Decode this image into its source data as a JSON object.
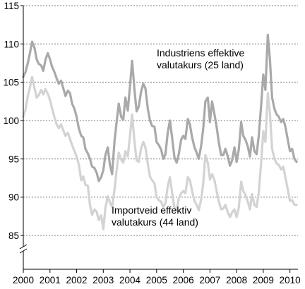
{
  "chart_data": {
    "type": "line",
    "title": "",
    "xlabel": "",
    "ylabel": "",
    "xlim": [
      2000.0,
      2010.3
    ],
    "ylim": [
      84,
      115
    ],
    "axis_break": true,
    "grid": "horizontal dashed",
    "y_ticks": [
      "85",
      "90",
      "95",
      "100",
      "105",
      "110",
      "115"
    ],
    "x_ticks": [
      "2000",
      "2001",
      "2002",
      "2003",
      "2004",
      "2005",
      "2006",
      "2007",
      "2008",
      "2009",
      "2010"
    ],
    "annotations": [
      {
        "lines": [
          "Industriens effektive",
          "valutakurs (25 land)"
        ]
      },
      {
        "lines": [
          "Importveid effektiv",
          "valutakurs (44 land)"
        ]
      }
    ],
    "series": [
      {
        "color": "#a9a9a9",
        "x": [
          2000.0,
          2000.08,
          2000.17,
          2000.25,
          2000.33,
          2000.42,
          2000.5,
          2000.58,
          2000.67,
          2000.75,
          2000.83,
          2000.92,
          2001.0,
          2001.08,
          2001.17,
          2001.25,
          2001.33,
          2001.42,
          2001.5,
          2001.58,
          2001.67,
          2001.75,
          2001.83,
          2001.92,
          2002.0,
          2002.08,
          2002.17,
          2002.25,
          2002.33,
          2002.42,
          2002.5,
          2002.58,
          2002.67,
          2002.75,
          2002.83,
          2002.92,
          2003.0,
          2003.08,
          2003.17,
          2003.25,
          2003.33,
          2003.42,
          2003.5,
          2003.58,
          2003.67,
          2003.75,
          2003.83,
          2003.92,
          2004.0,
          2004.08,
          2004.17,
          2004.25,
          2004.33,
          2004.42,
          2004.5,
          2004.58,
          2004.67,
          2004.75,
          2004.83,
          2004.92,
          2005.0,
          2005.08,
          2005.17,
          2005.25,
          2005.33,
          2005.42,
          2005.5,
          2005.58,
          2005.67,
          2005.75,
          2005.83,
          2005.92,
          2006.0,
          2006.08,
          2006.17,
          2006.25,
          2006.33,
          2006.42,
          2006.5,
          2006.58,
          2006.67,
          2006.75,
          2006.83,
          2006.92,
          2007.0,
          2007.08,
          2007.17,
          2007.25,
          2007.33,
          2007.42,
          2007.5,
          2007.58,
          2007.67,
          2007.75,
          2007.83,
          2007.92,
          2008.0,
          2008.08,
          2008.17,
          2008.25,
          2008.33,
          2008.42,
          2008.5,
          2008.58,
          2008.67,
          2008.75,
          2008.83,
          2008.92,
          2009.0,
          2009.08,
          2009.17,
          2009.25,
          2009.33,
          2009.42,
          2009.5,
          2009.58,
          2009.67,
          2009.75,
          2009.83,
          2009.92,
          2010.0,
          2010.08,
          2010.17,
          2010.25
        ],
        "values": [
          105.7,
          106.3,
          107.5,
          108.8,
          110.3,
          109.5,
          108.0,
          107.4,
          107.2,
          106.5,
          107.9,
          108.8,
          108.0,
          107.0,
          106.3,
          105.5,
          104.8,
          105.2,
          104.2,
          103.2,
          103.9,
          103.6,
          102.2,
          101.5,
          100.5,
          99.0,
          98.0,
          97.8,
          96.3,
          95.7,
          95.0,
          94.0,
          93.8,
          93.2,
          92.1,
          92.6,
          93.5,
          95.5,
          96.5,
          94.2,
          93.0,
          97.3,
          99.8,
          102.2,
          100.5,
          100.1,
          103.0,
          101.3,
          104.5,
          107.8,
          104.0,
          101.2,
          101.8,
          103.8,
          104.8,
          104.2,
          101.5,
          100.0,
          99.3,
          99.2,
          97.2,
          96.8,
          96.2,
          95.0,
          95.6,
          98.5,
          100.0,
          97.8,
          95.2,
          94.5,
          95.6,
          97.5,
          98.0,
          97.6,
          100.2,
          99.5,
          97.8,
          96.5,
          95.8,
          95.0,
          96.7,
          99.0,
          102.5,
          103.0,
          99.8,
          102.5,
          100.8,
          99.2,
          97.2,
          95.5,
          95.5,
          96.3,
          95.3,
          94.1,
          94.8,
          96.5,
          94.6,
          96.2,
          99.8,
          98.0,
          97.5,
          96.6,
          95.3,
          97.8,
          96.0,
          95.6,
          98.0,
          102.0,
          106.0,
          104.0,
          111.2,
          108.0,
          103.0,
          101.5,
          100.8,
          100.5,
          99.8,
          100.2,
          99.2,
          97.5,
          96.0,
          96.3,
          95.0,
          94.6
        ]
      },
      {
        "color": "#d3d3d3",
        "x": [
          2000.0,
          2000.08,
          2000.17,
          2000.25,
          2000.33,
          2000.42,
          2000.5,
          2000.58,
          2000.67,
          2000.75,
          2000.83,
          2000.92,
          2001.0,
          2001.08,
          2001.17,
          2001.25,
          2001.33,
          2001.42,
          2001.5,
          2001.58,
          2001.67,
          2001.75,
          2001.83,
          2001.92,
          2002.0,
          2002.08,
          2002.17,
          2002.25,
          2002.33,
          2002.42,
          2002.5,
          2002.58,
          2002.67,
          2002.75,
          2002.83,
          2002.92,
          2003.0,
          2003.08,
          2003.17,
          2003.25,
          2003.33,
          2003.42,
          2003.5,
          2003.58,
          2003.67,
          2003.75,
          2003.83,
          2003.92,
          2004.0,
          2004.08,
          2004.17,
          2004.25,
          2004.33,
          2004.42,
          2004.5,
          2004.58,
          2004.67,
          2004.75,
          2004.83,
          2004.92,
          2005.0,
          2005.08,
          2005.17,
          2005.25,
          2005.33,
          2005.42,
          2005.5,
          2005.58,
          2005.67,
          2005.75,
          2005.83,
          2005.92,
          2006.0,
          2006.08,
          2006.17,
          2006.25,
          2006.33,
          2006.42,
          2006.5,
          2006.58,
          2006.67,
          2006.75,
          2006.83,
          2006.92,
          2007.0,
          2007.08,
          2007.17,
          2007.25,
          2007.33,
          2007.42,
          2007.5,
          2007.58,
          2007.67,
          2007.75,
          2007.83,
          2007.92,
          2008.0,
          2008.08,
          2008.17,
          2008.25,
          2008.33,
          2008.42,
          2008.5,
          2008.58,
          2008.67,
          2008.75,
          2008.83,
          2008.92,
          2009.0,
          2009.08,
          2009.17,
          2009.25,
          2009.33,
          2009.42,
          2009.5,
          2009.58,
          2009.67,
          2009.75,
          2009.83,
          2009.92,
          2010.0,
          2010.08,
          2010.17,
          2010.25
        ],
        "values": [
          100.5,
          101.4,
          103.2,
          104.3,
          105.7,
          104.2,
          103.0,
          103.3,
          104.0,
          103.4,
          104.1,
          103.5,
          102.7,
          101.6,
          100.4,
          99.5,
          99.0,
          99.5,
          98.7,
          98.0,
          98.4,
          97.6,
          96.8,
          96.0,
          95.3,
          94.3,
          92.2,
          92.7,
          91.6,
          91.5,
          89.0,
          87.7,
          88.4,
          88.1,
          87.0,
          87.6,
          85.8,
          88.6,
          90.1,
          89.3,
          88.7,
          91.0,
          93.5,
          95.8,
          94.9,
          94.5,
          96.0,
          95.3,
          98.0,
          100.8,
          97.2,
          94.8,
          94.6,
          96.4,
          97.2,
          96.5,
          94.3,
          92.7,
          92.2,
          91.8,
          90.0,
          89.6,
          89.4,
          88.7,
          89.2,
          91.5,
          92.6,
          90.6,
          88.6,
          88.3,
          89.8,
          90.5,
          90.8,
          90.5,
          92.6,
          92.2,
          90.8,
          89.5,
          89.0,
          88.3,
          89.7,
          91.8,
          95.5,
          94.5,
          92.3,
          93.0,
          92.2,
          90.8,
          89.5,
          88.4,
          88.5,
          89.0,
          88.0,
          87.4,
          88.0,
          88.4,
          87.4,
          88.6,
          92.0,
          90.8,
          90.3,
          89.4,
          88.4,
          90.4,
          89.0,
          88.7,
          90.6,
          94.5,
          98.6,
          97.2,
          103.6,
          101.0,
          96.3,
          95.0,
          94.4,
          94.2,
          93.6,
          94.0,
          92.6,
          91.0,
          89.5,
          89.6,
          89.0,
          89.0
        ]
      }
    ]
  }
}
